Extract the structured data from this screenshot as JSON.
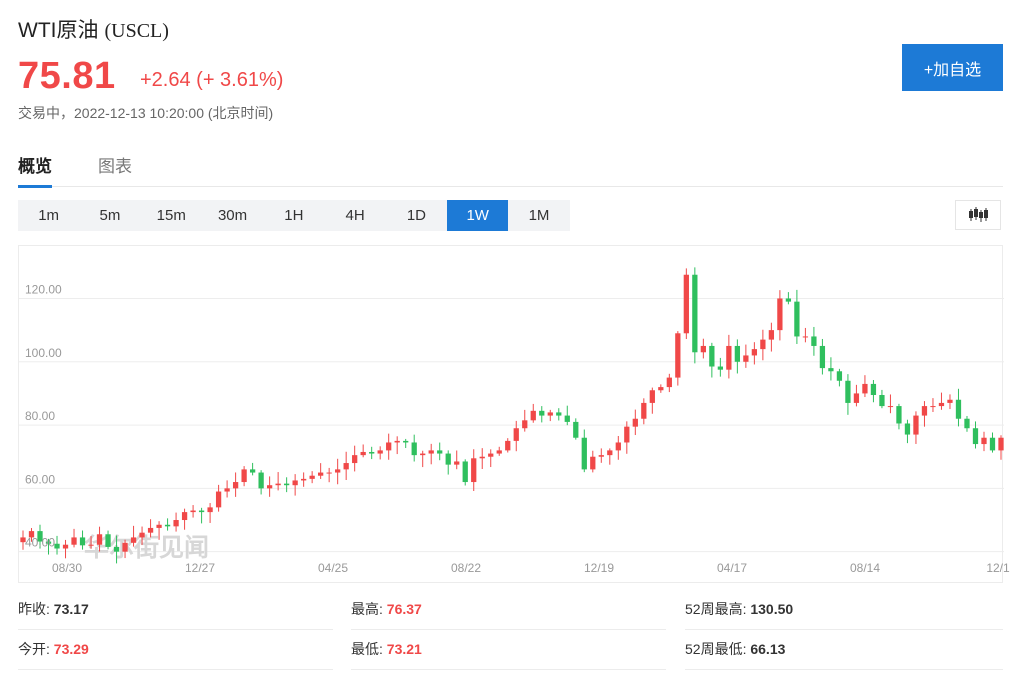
{
  "header": {
    "name": "WTI原油",
    "code": "(USCL)",
    "price": "75.81",
    "change": "+2.64 (+ 3.61%)",
    "status": "交易中，2022-12-13 10:20:00 (北京时间)",
    "add_label": "+加自选"
  },
  "tabs": [
    {
      "label": "概览"
    },
    {
      "label": "图表"
    }
  ],
  "periods": [
    {
      "label": "1m"
    },
    {
      "label": "5m"
    },
    {
      "label": "15m"
    },
    {
      "label": "30m"
    },
    {
      "label": "1H"
    },
    {
      "label": "4H"
    },
    {
      "label": "1D"
    },
    {
      "label": "1W"
    },
    {
      "label": "1M"
    }
  ],
  "active_period": "1W",
  "watermark": "华尔街见闻",
  "colors": {
    "up": "#f04848",
    "down": "#2fbf5e",
    "accent": "#1d7ad6"
  },
  "chart_data": {
    "type": "candlestick",
    "x_tick_labels": [
      "08/30",
      "12/27",
      "04/25",
      "08/22",
      "12/19",
      "04/17",
      "08/14",
      "12/1"
    ],
    "y_tick_labels": [
      "40.00",
      "60.00",
      "80.00",
      "100.00",
      "120.00"
    ],
    "ylim": [
      38,
      135
    ],
    "grid": true,
    "series": [
      {
        "close": [
          44.5,
          46.5,
          43.2,
          42.5,
          41.0,
          42.2,
          44.5,
          42.0,
          42.2,
          45.5,
          41.5,
          40.0,
          42.8,
          44.5,
          46.0,
          47.5,
          48.5,
          48.0,
          50.0,
          52.5,
          53.0,
          52.5,
          54.0,
          59.0,
          60.0,
          62.0,
          66.0,
          65.0,
          60.0,
          61.0,
          61.5,
          61.0,
          62.5,
          63.0,
          64.0,
          65.0,
          65.0,
          66.0,
          68.0,
          70.5,
          71.5,
          71.0,
          72.0,
          74.5,
          75.0,
          74.5,
          70.5,
          71.0,
          72.0,
          71.0,
          67.5,
          68.5,
          62.0,
          69.5,
          70.0,
          71.0,
          72.0,
          75.0,
          79.0,
          81.5,
          84.5,
          83.0,
          84.0,
          83.0,
          81.0,
          76.0,
          66.0,
          70.0,
          70.5,
          72.0,
          74.5,
          79.5,
          82.0,
          87.0,
          91.0,
          92.0,
          95.0,
          109.0,
          127.5,
          103.0,
          105.0,
          98.5,
          97.5,
          105.0,
          100.0,
          102.0,
          104.0,
          107.0,
          110.0,
          120.0,
          119.0,
          108.0,
          108.0,
          105.0,
          98.0,
          97.0,
          94.0,
          87.0,
          90.0,
          93.0,
          89.5,
          86.0,
          86.0,
          80.5,
          77.0,
          83.0,
          86.0,
          86.0,
          87.0,
          88.0,
          82.0,
          79.0,
          74.0,
          76.0,
          72.0,
          76.0
        ]
      }
    ]
  },
  "stats": [
    {
      "label": "昨收:",
      "value": "73.17",
      "up": false
    },
    {
      "label": "最高:",
      "value": "76.37",
      "up": true
    },
    {
      "label": "52周最高:",
      "value": "130.50",
      "up": false
    },
    {
      "label": "今开:",
      "value": "73.29",
      "up": true
    },
    {
      "label": "最低:",
      "value": "73.21",
      "up": true
    },
    {
      "label": "52周最低:",
      "value": "66.13",
      "up": false
    }
  ]
}
